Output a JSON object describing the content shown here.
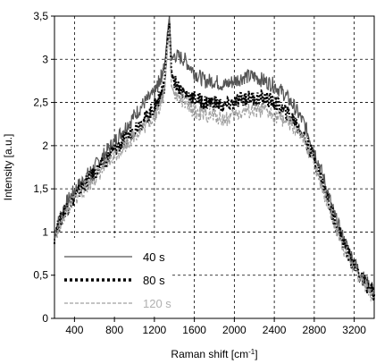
{
  "chart_data": {
    "type": "line",
    "title": "",
    "xlabel": "Raman shift [cm",
    "xlabel_sup": "-1",
    "xlabel_suffix": "]",
    "ylabel": "Intensity [a.u.]",
    "xlim": [
      200,
      3400
    ],
    "ylim": [
      0,
      3.5
    ],
    "xticks": [
      400,
      800,
      1200,
      1600,
      2000,
      2400,
      2800,
      3200
    ],
    "xtick_labels": [
      "400",
      "800",
      "1200",
      "1600",
      "2000",
      "2400",
      "2800",
      "3200"
    ],
    "yticks": [
      0,
      0.5,
      1,
      1.5,
      2,
      2.5,
      3,
      3.5
    ],
    "ytick_labels": [
      "0",
      "0,5",
      "1",
      "1,5",
      "2",
      "2,5",
      "3",
      "3,5"
    ],
    "grid": true,
    "legend_position": "bottom-left",
    "series": [
      {
        "name": "40 s",
        "color": "#555555",
        "style": "solid",
        "x": [
          200,
          300,
          400,
          500,
          600,
          700,
          800,
          900,
          1000,
          1100,
          1200,
          1250,
          1300,
          1330,
          1350,
          1370,
          1400,
          1500,
          1600,
          1700,
          1800,
          1900,
          2000,
          2100,
          2200,
          2300,
          2400,
          2500,
          2600,
          2700,
          2800,
          2900,
          3000,
          3100,
          3200,
          3300,
          3400
        ],
        "values": [
          1.0,
          1.3,
          1.48,
          1.62,
          1.75,
          1.9,
          2.05,
          2.2,
          2.35,
          2.5,
          2.6,
          2.75,
          2.9,
          3.3,
          3.5,
          3.0,
          3.05,
          3.0,
          2.85,
          2.75,
          2.75,
          2.7,
          2.75,
          2.8,
          2.8,
          2.75,
          2.7,
          2.6,
          2.45,
          2.25,
          1.95,
          1.6,
          1.2,
          0.9,
          0.65,
          0.45,
          0.3
        ]
      },
      {
        "name": "80 s",
        "color": "#000000",
        "style": "dotted",
        "x": [
          200,
          300,
          400,
          500,
          600,
          700,
          800,
          900,
          1000,
          1100,
          1200,
          1250,
          1300,
          1330,
          1350,
          1370,
          1400,
          1500,
          1600,
          1700,
          1800,
          1900,
          2000,
          2100,
          2200,
          2300,
          2400,
          2500,
          2600,
          2700,
          2800,
          2900,
          3000,
          3100,
          3200,
          3300,
          3400
        ],
        "values": [
          0.95,
          1.25,
          1.4,
          1.55,
          1.68,
          1.8,
          1.95,
          2.05,
          2.2,
          2.3,
          2.45,
          2.55,
          2.7,
          3.2,
          3.4,
          2.85,
          2.75,
          2.6,
          2.55,
          2.5,
          2.5,
          2.45,
          2.5,
          2.55,
          2.55,
          2.55,
          2.5,
          2.4,
          2.3,
          2.1,
          1.85,
          1.5,
          1.15,
          0.85,
          0.6,
          0.42,
          0.28
        ]
      },
      {
        "name": "120 s",
        "color": "#a0a0a0",
        "style": "dashed",
        "x": [
          200,
          300,
          400,
          500,
          600,
          700,
          800,
          900,
          1000,
          1100,
          1200,
          1250,
          1300,
          1330,
          1350,
          1370,
          1400,
          1500,
          1600,
          1700,
          1800,
          1900,
          2000,
          2100,
          2200,
          2300,
          2400,
          2500,
          2600,
          2700,
          2800,
          2900,
          3000,
          3100,
          3200,
          3300,
          3400
        ],
        "values": [
          0.9,
          1.2,
          1.38,
          1.5,
          1.62,
          1.75,
          1.88,
          2.0,
          2.12,
          2.22,
          2.35,
          2.45,
          2.6,
          3.1,
          3.35,
          2.7,
          2.6,
          2.5,
          2.4,
          2.35,
          2.35,
          2.3,
          2.35,
          2.4,
          2.4,
          2.4,
          2.35,
          2.3,
          2.2,
          2.05,
          1.8,
          1.45,
          1.1,
          0.8,
          0.58,
          0.4,
          0.25
        ]
      }
    ]
  }
}
